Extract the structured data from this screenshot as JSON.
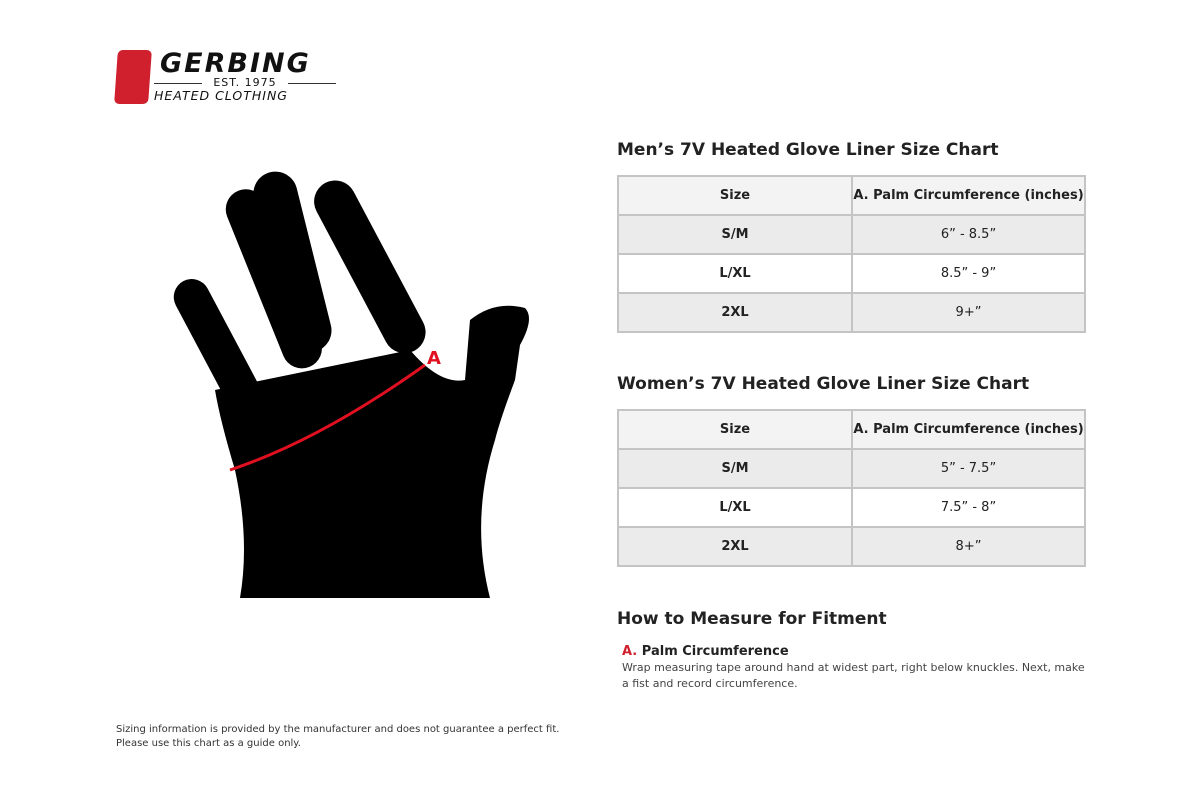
{
  "logo": {
    "name": "GERBING",
    "est": "EST. 1975",
    "sub": "HEATED CLOTHING"
  },
  "colors": {
    "brand_red": "#d0202e",
    "row_grey": "#ebebeb",
    "header_grey": "#f3f3f3"
  },
  "diagram": {
    "marker": "A"
  },
  "mens": {
    "title": "Men’s 7V Heated Glove Liner Size Chart",
    "headers": [
      "Size",
      "A. Palm Circumference (inches)"
    ],
    "rows": [
      [
        "S/M",
        "6” - 8.5”"
      ],
      [
        "L/XL",
        "8.5” - 9”"
      ],
      [
        "2XL",
        "9+”"
      ]
    ]
  },
  "womens": {
    "title": "Women’s 7V Heated Glove Liner Size Chart",
    "headers": [
      "Size",
      "A. Palm Circumference (inches)"
    ],
    "rows": [
      [
        "S/M",
        "5” - 7.5”"
      ],
      [
        "L/XL",
        "7.5” - 8”"
      ],
      [
        "2XL",
        "8+”"
      ]
    ]
  },
  "measure": {
    "title": "How to Measure for Fitment",
    "letter": "A.",
    "item": "Palm Circumference",
    "desc": "Wrap measuring tape around hand at widest part, right below knuckles. Next, make a fist and record circumference."
  },
  "disclaimer": [
    "Sizing information is provided by the manufacturer and does not guarantee a perfect fit.",
    "Please use this chart as a guide only."
  ]
}
